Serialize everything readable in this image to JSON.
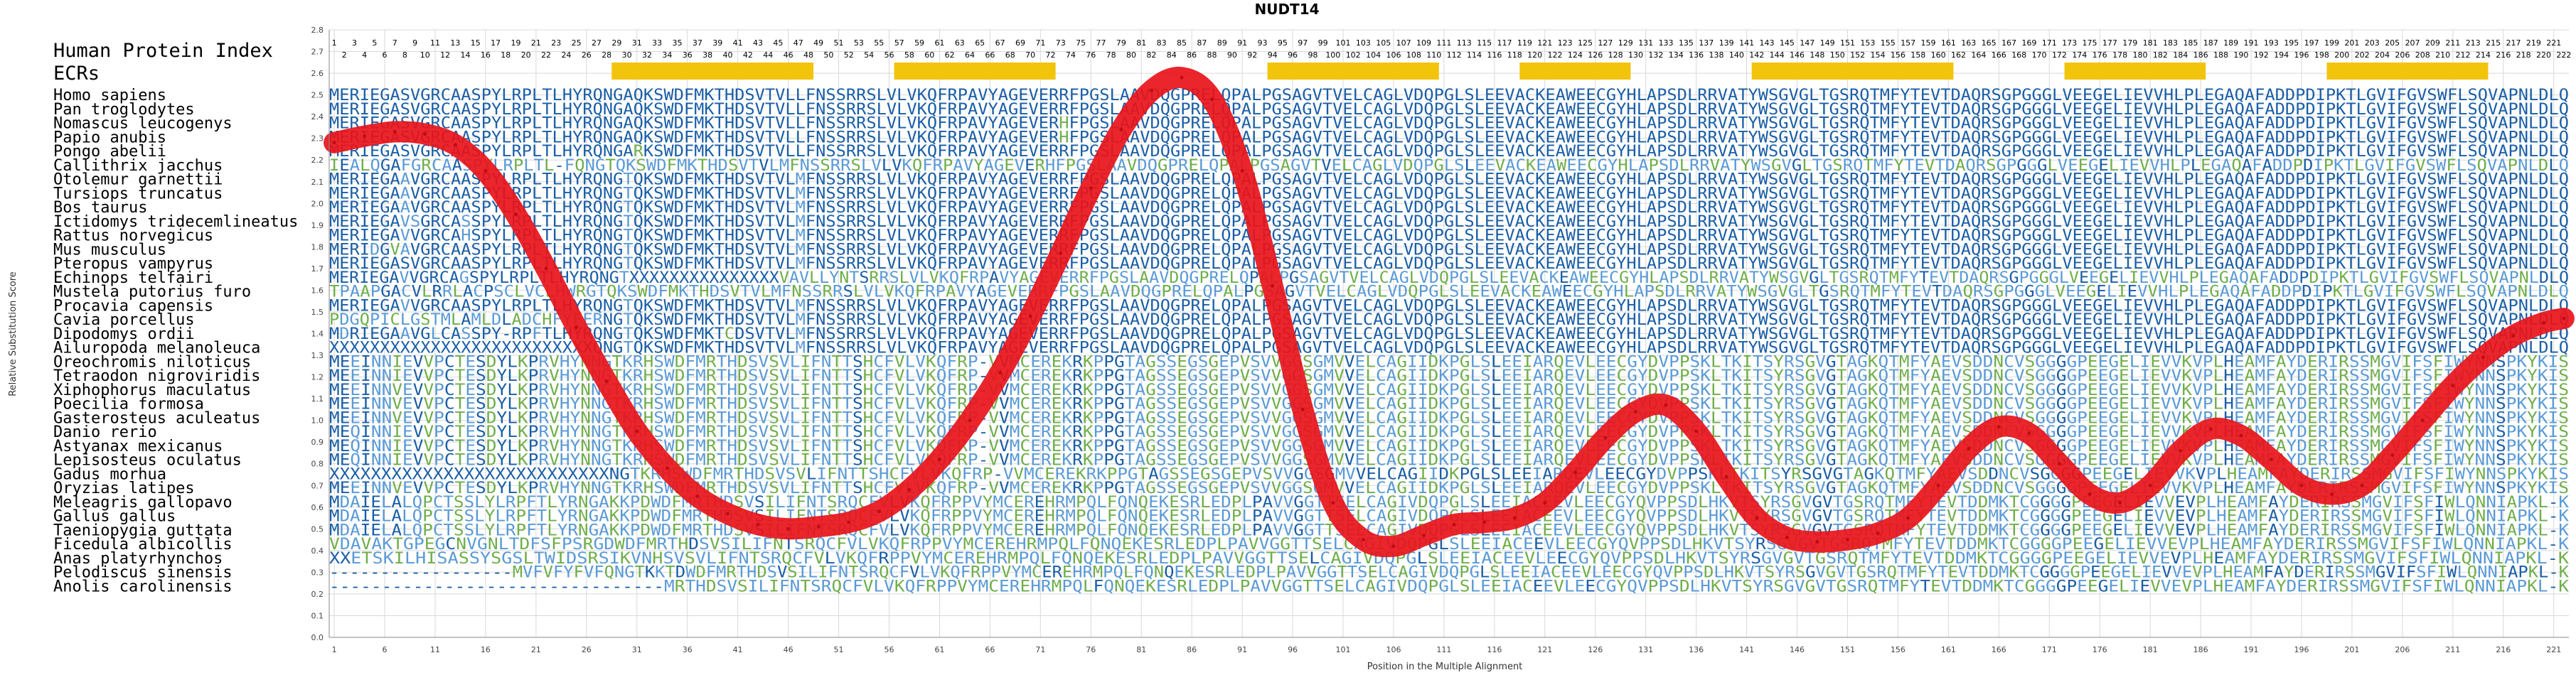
{
  "chart_data": {
    "type": "line",
    "title": "NUDT14",
    "xlabel": "Position in the Multiple Alignment",
    "ylabel": "Relative Substitution Score",
    "ylim": [
      0,
      2.8
    ],
    "xlim": [
      1,
      222
    ],
    "y_ticks": [
      "0.0",
      "0.1",
      "0.2",
      "0.3",
      "0.4",
      "0.5",
      "0.6",
      "0.7",
      "0.8",
      "0.9",
      "1.0",
      "1.1",
      "1.2",
      "1.3",
      "1.4",
      "1.5",
      "1.6",
      "1.7",
      "1.8",
      "1.9",
      "2.0",
      "2.1",
      "2.2",
      "2.3",
      "2.4",
      "2.5",
      "2.6",
      "2.7",
      "2.8"
    ],
    "x_ticks": [
      1,
      6,
      11,
      16,
      21,
      26,
      31,
      36,
      41,
      46,
      51,
      56,
      61,
      66,
      71,
      76,
      81,
      86,
      91,
      96,
      101,
      106,
      111,
      116,
      121,
      126,
      131,
      136,
      141,
      146,
      151,
      156,
      161,
      166,
      171,
      176,
      181,
      186,
      191,
      196,
      201,
      206,
      211,
      216,
      221
    ],
    "grid": true,
    "header_labels": [
      "Human Protein Index",
      "ECRs"
    ],
    "ecr_ranges": [
      [
        29,
        48
      ],
      [
        57,
        72
      ],
      [
        94,
        110
      ],
      [
        119,
        129
      ],
      [
        142,
        161
      ],
      [
        173,
        186
      ],
      [
        199,
        214
      ]
    ],
    "human_positions": [
      1,
      2,
      3,
      4,
      5,
      6,
      7,
      8,
      9,
      10,
      11,
      12,
      13,
      14,
      15,
      16,
      17,
      18,
      19,
      20,
      21,
      22,
      23,
      24,
      25,
      26,
      27,
      28,
      29,
      30,
      31,
      32,
      33,
      34,
      35,
      36,
      37,
      38,
      39,
      40,
      41,
      42,
      43,
      44,
      45,
      46,
      47,
      48,
      49,
      50,
      51,
      52,
      53,
      54,
      55,
      56,
      57,
      58,
      59,
      60,
      61,
      62,
      63,
      64,
      65,
      66,
      67,
      68,
      69,
      70,
      71,
      72,
      73,
      74,
      75,
      76,
      77,
      78,
      79,
      80,
      81,
      82,
      83,
      84,
      85,
      86,
      87,
      88,
      89,
      90,
      91,
      92,
      93,
      94,
      95,
      96,
      97,
      98,
      99,
      100,
      101,
      102,
      103,
      104,
      105,
      106,
      107,
      108,
      109,
      110,
      111,
      112,
      113,
      114,
      115,
      116,
      117,
      118,
      119,
      120,
      121,
      122,
      123,
      124,
      125,
      126,
      127,
      128,
      129,
      130,
      131,
      132,
      133,
      134,
      135,
      136,
      137,
      138,
      139,
      140,
      141,
      142,
      143,
      144,
      145,
      146,
      147,
      148,
      149,
      150,
      151,
      152,
      153,
      154,
      155,
      156,
      157,
      158,
      159,
      160,
      161,
      162,
      163,
      164,
      165,
      166,
      167,
      168,
      169,
      170,
      171,
      172,
      173,
      174,
      175,
      176,
      177,
      178,
      179,
      180,
      181,
      182,
      183,
      184,
      185,
      186,
      187,
      188,
      189,
      190,
      191,
      192,
      193,
      194,
      195,
      196,
      197,
      198,
      199,
      200,
      201,
      202,
      203,
      204,
      205,
      206,
      207,
      208,
      209,
      210,
      211,
      212,
      213,
      214,
      215,
      216,
      217,
      218,
      219,
      220,
      221,
      222
    ],
    "series": [
      {
        "x": [
          1,
          4,
          7,
          10,
          13,
          16,
          19,
          22,
          25,
          28,
          31,
          34,
          37,
          40,
          43,
          46,
          49,
          52,
          55,
          58,
          61,
          64,
          67,
          70,
          73,
          76,
          79,
          82,
          85,
          88,
          91,
          94,
          97,
          100,
          103,
          106,
          109,
          112,
          115,
          118,
          121,
          124,
          127,
          130,
          133,
          136,
          139,
          142,
          145,
          148,
          151,
          154,
          157,
          160,
          163,
          166,
          169,
          172,
          175,
          178,
          181,
          184,
          187,
          190,
          193,
          196,
          199,
          202,
          205,
          208,
          211,
          214,
          217,
          220,
          222
        ],
        "values": [
          2.28,
          2.31,
          2.33,
          2.32,
          2.27,
          2.15,
          1.95,
          1.7,
          1.43,
          1.18,
          0.95,
          0.78,
          0.65,
          0.57,
          0.52,
          0.5,
          0.51,
          0.53,
          0.58,
          0.68,
          0.82,
          1.0,
          1.22,
          1.48,
          1.77,
          2.07,
          2.34,
          2.52,
          2.58,
          2.48,
          2.15,
          1.62,
          1.05,
          0.62,
          0.45,
          0.42,
          0.47,
          0.52,
          0.53,
          0.55,
          0.62,
          0.76,
          0.92,
          1.04,
          1.07,
          0.95,
          0.74,
          0.55,
          0.46,
          0.44,
          0.45,
          0.48,
          0.55,
          0.7,
          0.87,
          0.97,
          0.94,
          0.8,
          0.66,
          0.62,
          0.7,
          0.86,
          0.96,
          0.93,
          0.82,
          0.7,
          0.66,
          0.7,
          0.84,
          1.0,
          1.16,
          1.29,
          1.39,
          1.45,
          1.47
        ]
      }
    ]
  },
  "species": [
    {
      "name": "Homo sapiens",
      "seq": "MERIEGASVGRCAASPYLRPLTLHYRQNGAQKSWDFMKTHDSVTVLLFNSSRRSLVLVKQFRPAVYAGEVERRFPGSLAAVDQGPRELQPALPGSAGVTVELCAGLVDQPGLSLEEVACKEAWEECGYHLAPSDLRRVATYWSGVGLTGSRQTMFYTEVTDAQRSGPGGGLVEEGELIEVVHLPLEGAQAFADDPDIPKTLGVIFGVSWFLSQVAPNLDLQ"
    },
    {
      "name": "Pan troglodytes",
      "seq": "MERIEGASVGRCAASPYLRPLTLHYRQNGAQKSWDFMKTHDSVTVLLFNSSRRSLVLVKQFRPAVYAGEVERRFPGSLAAVDQGPRELQPALPGSAGVTVELCAGLVDQPGLSLEEVACKEAWEECGYHLAPSDLRRVATYWSGVGLTGSRQTMFYTEVTDAQRSGPGGGLVEEGELIEVVHLPLEGAQAFADDPDIPKTLGVIFGVSWFLSQVAPNLDLQ"
    },
    {
      "name": "Nomascus leucogenys",
      "seq": "MERIEGASVGRCAASPYLRPLTLHYRQNGAQKSWDFMKTHDSVTVLLFNSSRRSLVLVKQFRPAVYAGEVERHFPGSLAAVDQGPRELQPALPGSAGVTVELCAGLVDQPGLSLEEVACKEAWEECGYHLAPSDLRRVATYWSGVGLTGSRQTMFYTEVTDAQRSGPGGGLVEEGELIEVVHLPLEGAQAFADDPDIPKTLGVIFGVSWFLSQVAPNLDLQ"
    },
    {
      "name": "Papio anubis",
      "seq": "MERIEGASVGRCAASPYLRPLTLHYRQNGAQKSWDFMKTHDSVTVLLFNSSRRSLVLVKQFRPAVYAGEVERHFPGSLAAVDQGPRELQPALPGSAGVTVELCAGLVDQPGLSLEEVACKEAWEECGYHLAPSDLRRVATYWSGVGLTGSRQTMFYTEVTDAQRSGPGGGLVEEGELIEVVHLPLEGAQAFADDPDIPKTLGVIFGVSWFLSQVAPNLDLQ"
    },
    {
      "name": "Pongo abelii",
      "seq": "MERIEGASVGRCAASPYLRPLTLHYRQNGARKSWDFMKTHDSVTVLLFNSSRRSLVLVKQFRPAVYAGEVERRFPGSLAAVDQGPRELQPALPGSAGVTVELCAGLVDQPGLSLEEVACKEAWEECGYHLAPSDLRRVATYWSGVGLTGSRQTMFYTEVTDAQRSGPGGGLVEEGELIEVVHLPLEGAQAFADDPDIPKTLGVIFGVSWFLSQVAPNLDLQ"
    },
    {
      "name": "Callithrix jacchus",
      "seq": "IEALQGAFGRCAASPYLRPLTL-FQNGTQKSWDFMKTHDSVTVLMFNSSRRSLVLVKQFRPAVYAGEVERHFPGSLAAVDQGPRELQPALPGSAGVTVELCAGLVDQPGLSLEEVACKEAWEECGYHLAPSDLRRVATYWSGVGLTGSRQTMFYTEVTDAQRSGPGGGLVEEGELIEVVHLPLEGAQAFADDPDIPKTLGVIFGVSWFLSQVAPNLDLQ"
    },
    {
      "name": "Otolemur garnettii",
      "seq": "MERIEGAAVGRCAASPYLRPLTLHYRQNGTQKSWDFMKTHDSVTVLMFNSSRRSLVLVKQFRPAVYAGEVERRFPGSLAAVDQGPRELQPALPGSAGVTVELCAGLVDQPGLSLEEVACKEAWEECGYHLAPSDLRRVATYWSGVGLTGSRQTMFYTEVTDAQRSGPGGGLVEEGELIEVVHLPLEGAQAFADDPDIPKTLGVIFGVSWFLSQVAPNLDLQ"
    },
    {
      "name": "Tursiops truncatus",
      "seq": "MERIEGAAVGRCAASPYLRPLTLHYRQNGTQKSWDFMKTHDSVTVLMFNSSRRSLVLVKQFRPAVYAGEVERRFPGSLAAVDQGPRELQPALPGSAGVTVELCAGLVDQPGLSLEEVACKEAWEECGYHLAPSDLRRVATYWSGVGLTGSRQTMFYTEVTDAQRSGPGGGLVEEGELIEVVHLPLEGAQAFADDPDIPKTLGVIFGVSWFLSQVAPNLDLQ"
    },
    {
      "name": "Bos taurus",
      "seq": "MERIEGAAVGRCAASPYLRPLTLHYRQNGTQKSWDFMKTHDSVTVLMFNSSRRSLVLVKQFRPAVYAGEVERRFPGSLAAVDQGPRELQPALPGSAGVTVELCAGLVDQPGLSLEEVACKEAWEECGYHLAPSDLRRVATYWSGVGLTGSRQTMFYTEVTDAQRSGPGGGLVEEGELIEVVHLPLEGAQAFADDPDIPKTLGVIFGVSWFLSQVAPNLDLQ"
    },
    {
      "name": "Ictidomys tridecemlineatus",
      "seq": "MERIEGAVSGRCASSPYLRPLTLHYRQNGTQKSWDFMKTHDSVTVLMFNSSRRSLVLVKQFRPAVYAGEVERRFPGSLAAVDQGPRELQPALPGSAGVTVELCAGLVDQPGLSLEEVACKEAWEECGYHLAPSDLRRVATYWSGVGLTGSRQTMFYTEVTDAQRSGPGGGLVEEGELIEVVHLPLEGAQAFADDPDIPKTLGVIFGVSWFLSQVAPNLDLQ"
    },
    {
      "name": "Rattus norvegicus",
      "seq": "MERIEGAVVGRCAHSPYLRPLTLHYRQNGTQKSWDFMKTHDSVTVLMFNSSRRSLVLVKQFRPAVYAGEVERRFPGSLAAVDQGPRELQPALPGSAGVTVELCAGLVDQPGLSLEEVACKEAWEECGYHLAPSDLRRVATYWSGVGLTGSRQTMFYTEVTDAQRSGPGGGLVEEGELIEVVHLPLEGAQAFADDPDIPKTLGVIFGVSWFLSQVAPNLDLQ"
    },
    {
      "name": "Mus musculus",
      "seq": "MERIDGVAVGRCAASPYLRPLTLHYRQNGTQKSWDFMKTHDSVTVLMFNSSRRSLVLVKQFRPAVYAGEVERRFPGSLAAVDQGPRELQPALPGSAGVTVELCAGLVDQPGLSLEEVACKEAWEECGYHLAPSDLRRVATYWSGVGLTGSRQTMFYTEVTDAQRSGPGGGLVEEGELIEVVHLPLEGAQAFADDPDIPKTLGVIFGVSWFLSQVAPNLDLQ"
    },
    {
      "name": "Pteropus vampyrus",
      "seq": "MERIEGASVGRCAASPYLRPLTLHYRQNGTQKSWDFMKTHDSVTVLMFNSSRRSLVLVKQFRPAVYAGEVERRFPGSLAAVDQGPRELQPALPGSAGVTVELCAGLVDQPGLSLEEVACKEAWEECGYHLAPSDLRRVATYWSGVGLTGSRQTMFYTEVTDAQRSGPGGGLVEEGELIEVVHLPLEGAQAFADDPDIPKTLGVIFGVSWFLSQVAPNLDLQ"
    },
    {
      "name": "Echinops telfairi",
      "seq": "MERIEGAVVGRCAGSPYLRPLTLHYRQNGTXXXXXXXXXXXXXXXVAVLLYNTSRRSLVLVKQFRPAVYAGEVERRFPGSLAAVDQGPRELQPALPGSAGVTVELCAGLVDQPGLSLEEVACKEAWEECGYHLAPSDLRRVATYWSGVGLTGSRQTMFYTEVTDAQRSGPGGGLVEEGELIEVVHLPLEGAQAFADDPDIPKTLGVIFGVSWFLSQVAPNLDLQ"
    },
    {
      "name": "Mustela putorius furo",
      "seq": "TPAAPGACVLRRLACPSCLVCLHWRGTQKSWDFMKTHDSVTVLMFNSSRRSLVLVKQFRPAVYAGEVERRFPGSLAAVDQGPRELQPALPGSAGVTVELCAGLVDQPGLSLEEVACKEAWEECGYHLAPSDLRRVATYWSGVGLTGSRQTMFYTEVTDAQRSGPGGGLVEEGELIEVVHLPLEGAQAFADDPDIPKTLGVIFGVSWFLSQVAPNLDLQ"
    },
    {
      "name": "Procavia capensis",
      "seq": "MERIEGAVVGRCAASPYLRPLTLHYRQNGTQKSWDFMKTHDSVTVLMFNSSRRSLVLVKQFRPAVYAGEVERRFPGSLAAVDQGPRELQPALPGSAGVTVELCAGLVDQPGLSLEEVACKEAWEECGYHLAPSDLRRVATYWSGVGLTGSRQTMFYTEVTDAQRSGPGGGLVEEGELIEVVHLPLEGAQAFADDPDIPKTLGVIFGVSWFLSQVAPNLDLQ"
    },
    {
      "name": "Cavia porcellus",
      "seq": "PDGQPICLGSTMLAMLDLADCHFYFERNGTQKSWDFMKTHDSVTVLMFNSSRRSLVLVKQFRPAVYAGEVERRFPGSLAAVDQGPRELQPALPGSAGVTVELCAGLVDQPGLSLEEVACKEAWEECGYHLAPSDLRRVATYWSGVGLTGSRQTMFYTEVTDAQRSGPGGGLVEEGELIEVVHLPLEGAQAFADDPDIPKTLGVIFGVSWFLSQVAPNLDLQ"
    },
    {
      "name": "Dipodomys ordii",
      "seq": "MDRIEGAAVGLCASSPY-RPFTLHYRQNGTQKSWDFMKTCDSVTVLMFNSSRRSLVLVKQFRPAVYAGEVERRFPGSLAAVDQGPRELQPALPGSAGVTVELCAGLVDQPGLSLEEVACKEAWEECGYHLAPSDLRRVATYWSGVGLTGSRQTMFYTEVTDAQRSGPGGGLVEEGELIEVVHLPLEGAQAFADDPDIPKTLGVIFGVSWFLSQVAPNLDLQ"
    },
    {
      "name": "Ailuropoda melanoleuca",
      "seq": "XXXXXXXXXXXXXXXXXXXXXXXXXXQNGTQKSWDFMKTHDSVTVLMFNSSRRSLVLVKQFRPAVYAGEVERRFPGSLAAVDQGPRELQPALPGSAGVTVELCAGLVDQPGLSLEEVACKEAWEECGYHLAPSDLRRVATYWSGVGLTGSRQTMFYTEVTDAQRSGPGGGLVEEGELIEVVHLPLEGAQAFADDPDIPKTLGVIFGVSWFLSQVAPNLDLQ"
    },
    {
      "name": "Oreochromis niloticus",
      "seq": "MEEINNIEVVPCTESDYLKPRVHYNNGTKRHSWDFMRTHDSVSVLIFNTTSHCFVLVKQFRP-VVMCEREKRKPPGTAGSSEGSGEPVSVVGGSGMVVELCAGIIDKPGLSLEEIARQEVLEECGYDVPPSKLTKITSYRSGVGTAGKQTMFYAEVSDDNCVSGGGGPEEGELIEVVKVPLHEAMFAYDERIRSSMGVIFSFIWYNNSPKYKIS"
    },
    {
      "name": "Tetraodon nigroviridis",
      "seq": "MEEINNIEVVPCTESDYLKPRVHYNNGTKRHSWDFMRTHDSVSVLIFNTTSHCFVLVKQFRP-VVMCEREKRKPPGTAGSSEGSGEPVSVVGGSGMVVELCAGIIDKPGLSLEEIARQEVLEECGYDVPPSKLTKITSYRSGVGTAGKQTMFYAEVSDDNCVSGGGGPEEGELIEVVKVPLHEAMFAYDERIRSSMGVIFSFIWYNNSPKYKIS"
    },
    {
      "name": "Xiphophorus maculatus",
      "seq": "MEEINNVEVVPCTESDYLKPRVHYNNGTKRHSWDFMRTHDSVSVLIFNTTSHCFVLVKQFRP-VVMCEREKRKPPGTAGSSEGSGEPVSVVGGSGMVVELCAGIIDKPGLSLEEIARQEVLEECGYDVPPSKLTKITSYRSGVGTAGKQTMFYAEVSDDNCVSGGGGPEEGELIEVVKVPLHEAMFAYDERIRSSMGVIFSFIWYNNSPKYKIS"
    },
    {
      "name": "Poecilia formosa",
      "seq": "MEEINNVEVVPCTESDYLKPRVHYNNGTKRHSWDFMRTHDSVSVLIFNTTSHCFVLVKQFRP-VVMCEREKRKPPGTAGSSEGSGEPVSVVGGSGMVVELCAGIIDKPGLSLEEIARQEVLEECGYDVPPSKLTKITSYRSGVGTAGKQTMFYAEVSDDNCVSGGGGPEEGELIEVVKVPLHEAMFAYDERIRSSMGVIFSFIWYNNSPKYKIS"
    },
    {
      "name": "Gasterosteus aculeatus",
      "seq": "MEEINNVEVVPCTESDYLKPRVHYNNGTKRHSWDFMRTHDSVSVLIFNTTSHCFVLVKQFRP-VVMCEREKRKPPGTAGSSEGSGEPVSVVGGSGMVVELCAGIIDKPGLSLEEIARQEVLEECGYDVPPSKLTKITSYRSGVGTAGKQTMFYAEVSDDNCVSGGGGPEEGELIEVVKVPLHEAMFAYDERIRSSMGVIFSFIWYNNSPKYKIS"
    },
    {
      "name": "Danio rerio",
      "seq": "MEQINNIEVVPCTESDYLKPRVHYNNGTKRHSWDFMRTHDSVSVLIFNTTSHCFVLVKQFRP-VVMCEREKRKPPGTAGSSEGSGEPVSVVGGSGMVVELCAGIIDKPGLSLEEIARQEVLEECGYDVPPSKLTKITSYRSGVGTAGKQTMFYAEVSDDNCVSGGGGPEEGELIEVVKVPLHEAMFAYDERIRSSMGVIFSFIWYNNSPKYKIS"
    },
    {
      "name": "Astyanax mexicanus",
      "seq": "MEQINNIEVVPCTESDYLKPRVHYNNGTKRHSWDFMRTHDSVSVLIFNTTSHCFVLVKQFRP-VVMCEREKRKPPGTAGSSEGSGEPVSVVGGSGMVVELCAGIIDKPGLSLEEIARQEVLEECGYDVPPSKLTKITSYRSGVGTAGKQTMFYAEVSDDNCVSGGGGPEEGELIEVVKVPLHEAMFAYDERIRSSMGVIFSFIWYNNSPKYKIS"
    },
    {
      "name": "Lepisosteus oculatus",
      "seq": "MEQINNIEVVPCTESDYLKPRVHYNNGTKRHSWDFMRTHDSVSVLIFNTTSHCFVLVKQFRP-VVMCEREKRKPPGTAGSSEGSGEPVSVVGGSGMVVELCAGIIDKPGLSLEEIARQEVLEECGYDVPPSKLTKITSYRSGVGTAGKQTMFYAEVSDDNCVSGGGGPEEGELIEVVKVPLHEAMFAYDERIRSSMGVIFSFIWYNNSPKYKIS"
    },
    {
      "name": "Gadus morhua",
      "seq": "XXXXXXXXXXXXXXXXXXXXXXXXXXXNGTKRHSWDFMRTHDSVSVLIFNTTSHCFVLVKQFRP-VVMCEREKRKPPGTAGSSEGSGEPVSVVGGSGMVVELCAGIIDKPGLSLEEIARQEVLEECGYDVPPSKLTKITSYRSGVGTAGKQTMFYAEVSDDNCVSGGGGPEEGELIEVVKVPLHEAMFAYDERIRSSMGVIFSFIWYNNSPKYKIS"
    },
    {
      "name": "Oryzias latipes",
      "seq": "MEEINNVEVVPCTESDYLKPRVHYNNGTKRHSWDFMRTHDSVSVLIFNTTSHCFVLVKQFRP-VVMCEREKRKPPGTAGSSEGSGEPVSVVGGSGMVVELCAGIIDKPGLSLEEIARQEVLEECGYDVPPSKLTKITSYRSGVGTAGKQTMFYAEVSDDNCVSGGGGPEEGELIEVVKVPLHEAMFAYDERIRSSMGVIFSFIWYNNSPKYKIS"
    },
    {
      "name": "Meleagris gallopavo",
      "seq": "MDAIELALQPCTSSLYLRPFTLYRNGAKKPDWDFMRTHDSVSILIFNTSRQCFVLVKQFRPPVYMCEREHRMPQLFQNQEKESRLEDPLPAVVGGTTSELCAGIVDQPGLSLEEIACEEVLEECGYQVPPSDLHKVTSYRSGVGVTGSRQTMFYTEVTDDMKTCGGGGPEEGELIEVVEVPLHEAMFAYDERIRSSMGVIFSFIWLQNNIAPKL-K"
    },
    {
      "name": "Gallus gallus",
      "seq": "MDAIELALQPCTSSLYLRPFTLYRNGAKKPDWDFMRTHDSVSILIFNTSRQCFVLVKQFRPPVYMCEREHRMPQLFQNQEKESRLEDPLPAVVGGTTSELCAGIVDQPGLSLEEIACEEVLEECGYQVPPSDLHKVTSYRSGVGVTGSRQTMFYTEVTDDMKTCGGGGPEEGELIEVVEVPLHEAMFAYDERIRSSMGVIFSFIWLQNNIAPKL-K"
    },
    {
      "name": "Taeniopygia guttata",
      "seq": "MDAIELALQPCTSSLYLRPFTLYRNGAKKPDWDFMRTHDSVSILIFNTSRQCFVLVKQFRPPVYMCEREHRMPQLFQNQEKESRLEDPLPAVVGGTTSELCAGIVDQPGLSLEEIACEEVLEECGYQVPPSDLHKVTSYRSGVGVTGSRQTMFYTEVTDDMKTCGGGGPEEGELIEVVEVPLHEAMFAYDERIRSSMGVIFSFIWLQNNIAPKL-K"
    },
    {
      "name": "Ficedula albicollis",
      "seq": "VDAVAKTGPEGCNVGNLTDFSFPSRGDWDFMRTHDSVSILIFNTSRQCFVLVKQFRPPVYMCEREHRMPQLFQNQEKESRLEDPLPAVVGGTTSELCAGIVDQPGLSLEEIACEEVLEECGYQVPPSDLHKVTSYRSGVGVTGSRQTMFYTEVTDDMKTCGGGGPEEGELIEVVEVPLHEAMFAYDERIRSSMGVIFSFIWLQNNIAPKL-K"
    },
    {
      "name": "Anas platyrhynchos",
      "seq": "XXETSKILHISASSYSGSLTWIDSRSIKVNHSVSVLIFNTSRQCFVLVKQFRPPVYMCEREHRMPQLFQNQEKESRLEDPLPAVVGGTTSELCAGIVDQPGLSLEEIACEEVLEECGYQVPPSDLHKVTSYRSGVGVTGSRQTMFYTEVTDDMKTCGGGGPEEGELIEVVEVPLHEAMFAYDERIRSSMGVIFSFIWLQNNIAPKL-K"
    },
    {
      "name": "Pelodiscus sinensis",
      "seq": "------------------MVFVFYFVFQNGTKKTDWDFMRTHDSVSILIFNTSRQCFVLVKQFRPPVYMCEREHRMPQLFQNQEKESRLEDPLPAVVGGTTSELCAGIVDQPGLSLEEIACEEVLEECGYQVPPSDLHKVTSYRSGVGVTGSRQTMFYTEVTDDMKTCGGGGPEEGELIEVVEVPLHEAMFAYDERIRSSMGVIFSFIWLQNNIAPKL-K"
    },
    {
      "name": "Anolis carolinensis",
      "seq": "--------------------------------MRTHDSVSILIFNTSRQCFVLVKQFRPPVYMCEREHRMPQLFQNQEKESRLEDPLPAVVGGTTSELCAGIVDQPGLSLEEIACEEVLEECGYQVPPSDLHKVTSYRSGVGVTGSRQTMFYTEVTDDMKTCGGGGPEEGELIEVVEVPLHEAMFAYDERIRSSMGVIFSFIWLQNNIAPKL-K"
    }
  ],
  "colors": {
    "curve": "#e8141a",
    "ecr": "#f2c40c",
    "grid": "#d9d9d9",
    "conserved": "#1a5ea6",
    "variable": "#5a9ad6",
    "mismatch": "#6fae4a"
  }
}
